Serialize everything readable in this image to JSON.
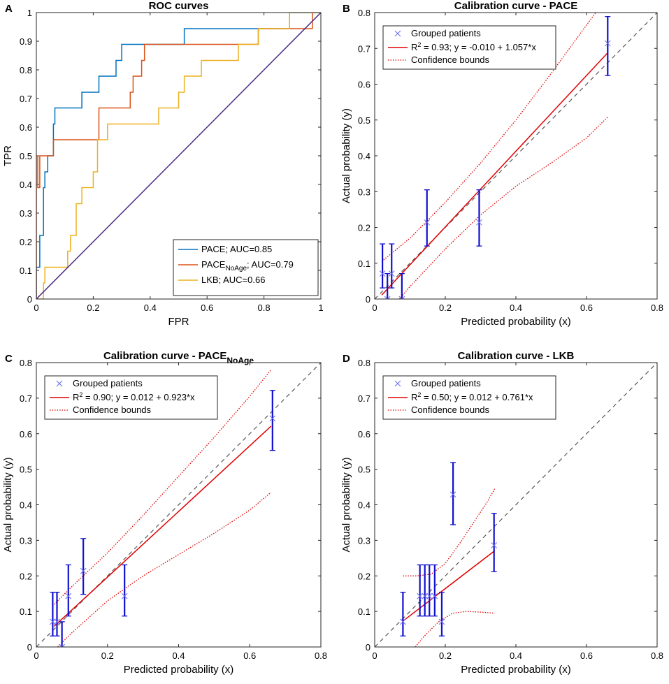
{
  "chart_data": [
    {
      "panel": "A",
      "type": "line",
      "title": "ROC curves",
      "xlabel": "FPR",
      "ylabel": "TPR",
      "xlim": [
        0,
        1
      ],
      "ylim": [
        0,
        1
      ],
      "xticks": [
        "0",
        "0.2",
        "0.4",
        "0.6",
        "0.8",
        "1"
      ],
      "yticks": [
        "0",
        "0.1",
        "0.2",
        "0.3",
        "0.4",
        "0.5",
        "0.6",
        "0.7",
        "0.8",
        "0.9",
        "1"
      ],
      "legend_position": "bottom-right",
      "series": [
        {
          "name": "PACE; AUC=0.85",
          "label_main": "PACE",
          "label_sub": "",
          "label_rest": "; AUC=0.85",
          "color": "#0072BD",
          "points": [
            [
              0,
              0
            ],
            [
              0,
              0.111
            ],
            [
              0.012,
              0.111
            ],
            [
              0.012,
              0.222
            ],
            [
              0.025,
              0.222
            ],
            [
              0.025,
              0.389
            ],
            [
              0.03,
              0.389
            ],
            [
              0.03,
              0.444
            ],
            [
              0.04,
              0.444
            ],
            [
              0.04,
              0.5
            ],
            [
              0.06,
              0.5
            ],
            [
              0.06,
              0.611
            ],
            [
              0.065,
              0.611
            ],
            [
              0.065,
              0.667
            ],
            [
              0.16,
              0.667
            ],
            [
              0.16,
              0.722
            ],
            [
              0.22,
              0.722
            ],
            [
              0.22,
              0.778
            ],
            [
              0.28,
              0.778
            ],
            [
              0.28,
              0.833
            ],
            [
              0.3,
              0.833
            ],
            [
              0.3,
              0.889
            ],
            [
              0.52,
              0.889
            ],
            [
              0.52,
              0.944
            ],
            [
              0.89,
              0.944
            ],
            [
              0.89,
              1
            ],
            [
              1,
              1
            ]
          ]
        },
        {
          "name": "PACE_NoAge; AUC=0.79",
          "label_main": "PACE",
          "label_sub": "NoAge",
          "label_rest": "; AUC=0.79",
          "color": "#D95319",
          "points": [
            [
              0,
              0
            ],
            [
              0,
              0.5
            ],
            [
              0.005,
              0.5
            ],
            [
              0.005,
              0.389
            ],
            [
              0.012,
              0.389
            ],
            [
              0.012,
              0.5
            ],
            [
              0.06,
              0.5
            ],
            [
              0.06,
              0.556
            ],
            [
              0.22,
              0.556
            ],
            [
              0.22,
              0.667
            ],
            [
              0.33,
              0.667
            ],
            [
              0.33,
              0.722
            ],
            [
              0.34,
              0.722
            ],
            [
              0.34,
              0.778
            ],
            [
              0.37,
              0.778
            ],
            [
              0.37,
              0.833
            ],
            [
              0.38,
              0.833
            ],
            [
              0.38,
              0.889
            ],
            [
              0.78,
              0.889
            ],
            [
              0.78,
              0.944
            ],
            [
              0.97,
              0.944
            ],
            [
              0.97,
              1
            ],
            [
              1,
              1
            ]
          ]
        },
        {
          "name": "LKB; AUC=0.66",
          "label_main": "LKB",
          "label_sub": "",
          "label_rest": "; AUC=0.66",
          "color": "#EDB120",
          "points": [
            [
              0,
              0
            ],
            [
              0.025,
              0
            ],
            [
              0.025,
              0.056
            ],
            [
              0.03,
              0.056
            ],
            [
              0.03,
              0.111
            ],
            [
              0.11,
              0.111
            ],
            [
              0.11,
              0.167
            ],
            [
              0.12,
              0.167
            ],
            [
              0.12,
              0.222
            ],
            [
              0.14,
              0.222
            ],
            [
              0.14,
              0.333
            ],
            [
              0.16,
              0.333
            ],
            [
              0.16,
              0.389
            ],
            [
              0.2,
              0.389
            ],
            [
              0.2,
              0.444
            ],
            [
              0.215,
              0.444
            ],
            [
              0.215,
              0.556
            ],
            [
              0.25,
              0.556
            ],
            [
              0.25,
              0.611
            ],
            [
              0.43,
              0.611
            ],
            [
              0.43,
              0.667
            ],
            [
              0.5,
              0.667
            ],
            [
              0.5,
              0.722
            ],
            [
              0.52,
              0.722
            ],
            [
              0.52,
              0.778
            ],
            [
              0.58,
              0.778
            ],
            [
              0.58,
              0.833
            ],
            [
              0.71,
              0.833
            ],
            [
              0.71,
              0.889
            ],
            [
              0.78,
              0.889
            ],
            [
              0.78,
              0.944
            ],
            [
              0.89,
              0.944
            ],
            [
              0.89,
              1
            ],
            [
              1,
              1
            ]
          ]
        },
        {
          "name": "diagonal",
          "color": "#4B2C82",
          "points": [
            [
              0,
              0
            ],
            [
              1,
              1
            ]
          ]
        }
      ]
    },
    {
      "panel": "B",
      "type": "scatter",
      "title_main": "Calibration curve - PACE",
      "title_sub": "",
      "xlabel": "Predicted probability (x)",
      "ylabel": "Actual probability (y)",
      "xlim": [
        0,
        0.8
      ],
      "ylim": [
        0,
        0.8
      ],
      "xticks": [
        "0",
        "0.2",
        "0.4",
        "0.6",
        "0.8"
      ],
      "yticks": [
        "0",
        "0.1",
        "0.2",
        "0.3",
        "0.4",
        "0.5",
        "0.6",
        "0.7",
        "0.8"
      ],
      "legend": {
        "grouped": "Grouped patients",
        "fit_pre": "R",
        "fit_sup": "2",
        "fit_post": " = 0.93; y = -0.010 + 1.057*x",
        "bounds": "Confidence bounds"
      },
      "fit": {
        "intercept": -0.01,
        "slope": 1.057,
        "x_range": [
          0.02,
          0.66
        ]
      },
      "points": [
        {
          "x": 0.022,
          "y": 0.071,
          "lo": 0.031,
          "hi": 0.154
        },
        {
          "x": 0.036,
          "y": 0.0,
          "lo": 0.0,
          "hi": 0.071
        },
        {
          "x": 0.048,
          "y": 0.071,
          "lo": 0.031,
          "hi": 0.154
        },
        {
          "x": 0.077,
          "y": 0.0,
          "lo": 0.0,
          "hi": 0.071
        },
        {
          "x": 0.148,
          "y": 0.214,
          "lo": 0.148,
          "hi": 0.305
        },
        {
          "x": 0.296,
          "y": 0.214,
          "lo": 0.148,
          "hi": 0.305
        },
        {
          "x": 0.66,
          "y": 0.714,
          "lo": 0.624,
          "hi": 0.789
        }
      ],
      "upper_bound": [
        [
          0.02,
          0.105
        ],
        [
          0.1,
          0.17
        ],
        [
          0.2,
          0.27
        ],
        [
          0.3,
          0.38
        ],
        [
          0.4,
          0.5
        ],
        [
          0.5,
          0.63
        ],
        [
          0.6,
          0.765
        ],
        [
          0.63,
          0.805
        ]
      ],
      "lower_bound": [
        [
          0.07,
          0.0
        ],
        [
          0.1,
          0.035
        ],
        [
          0.2,
          0.14
        ],
        [
          0.3,
          0.235
        ],
        [
          0.4,
          0.315
        ],
        [
          0.5,
          0.38
        ],
        [
          0.6,
          0.45
        ],
        [
          0.66,
          0.508
        ]
      ]
    },
    {
      "panel": "C",
      "type": "scatter",
      "title_main": "Calibration curve - PACE",
      "title_sub": "NoAge",
      "xlabel": "Predicted probability (x)",
      "ylabel": "Actual probability (y)",
      "xlim": [
        0,
        0.8
      ],
      "ylim": [
        0,
        0.8
      ],
      "xticks": [
        "0",
        "0.2",
        "0.4",
        "0.6",
        "0.8"
      ],
      "yticks": [
        "0",
        "0.1",
        "0.2",
        "0.3",
        "0.4",
        "0.5",
        "0.6",
        "0.7",
        "0.8"
      ],
      "legend": {
        "grouped": "Grouped patients",
        "fit_pre": "R",
        "fit_sup": "2",
        "fit_post": " = 0.90; y = 0.012 + 0.923*x",
        "bounds": "Confidence bounds"
      },
      "fit": {
        "intercept": 0.012,
        "slope": 0.923,
        "x_range": [
          0.05,
          0.66
        ]
      },
      "points": [
        {
          "x": 0.046,
          "y": 0.071,
          "lo": 0.031,
          "hi": 0.154
        },
        {
          "x": 0.058,
          "y": 0.071,
          "lo": 0.031,
          "hi": 0.154
        },
        {
          "x": 0.072,
          "y": 0.0,
          "lo": 0.0,
          "hi": 0.071
        },
        {
          "x": 0.09,
          "y": 0.143,
          "lo": 0.087,
          "hi": 0.231
        },
        {
          "x": 0.132,
          "y": 0.214,
          "lo": 0.148,
          "hi": 0.305
        },
        {
          "x": 0.248,
          "y": 0.143,
          "lo": 0.087,
          "hi": 0.231
        },
        {
          "x": 0.664,
          "y": 0.643,
          "lo": 0.553,
          "hi": 0.722
        }
      ],
      "upper_bound": [
        [
          0.05,
          0.12
        ],
        [
          0.1,
          0.17
        ],
        [
          0.2,
          0.265
        ],
        [
          0.3,
          0.37
        ],
        [
          0.4,
          0.48
        ],
        [
          0.5,
          0.59
        ],
        [
          0.6,
          0.705
        ],
        [
          0.66,
          0.78
        ]
      ],
      "lower_bound": [
        [
          0.06,
          0.0
        ],
        [
          0.1,
          0.04
        ],
        [
          0.2,
          0.13
        ],
        [
          0.3,
          0.2
        ],
        [
          0.4,
          0.26
        ],
        [
          0.5,
          0.32
        ],
        [
          0.6,
          0.385
        ],
        [
          0.66,
          0.435
        ]
      ]
    },
    {
      "panel": "D",
      "type": "scatter",
      "title_main": "Calibration curve - LKB",
      "title_sub": "",
      "xlabel": "Predicted probability (x)",
      "ylabel": "Actual probability (y)",
      "xlim": [
        0,
        0.8
      ],
      "ylim": [
        0,
        0.8
      ],
      "xticks": [
        "0",
        "0.2",
        "0.4",
        "0.6",
        "0.8"
      ],
      "yticks": [
        "0",
        "0.1",
        "0.2",
        "0.3",
        "0.4",
        "0.5",
        "0.6",
        "0.7",
        "0.8"
      ],
      "legend": {
        "grouped": "Grouped patients",
        "fit_pre": "R",
        "fit_sup": "2",
        "fit_post": " = 0.50; y = 0.012 + 0.761*x",
        "bounds": "Confidence bounds"
      },
      "fit": {
        "intercept": 0.012,
        "slope": 0.761,
        "x_range": [
          0.08,
          0.34
        ]
      },
      "points": [
        {
          "x": 0.08,
          "y": 0.071,
          "lo": 0.031,
          "hi": 0.154
        },
        {
          "x": 0.128,
          "y": 0.143,
          "lo": 0.087,
          "hi": 0.231
        },
        {
          "x": 0.142,
          "y": 0.143,
          "lo": 0.087,
          "hi": 0.231
        },
        {
          "x": 0.155,
          "y": 0.143,
          "lo": 0.087,
          "hi": 0.231
        },
        {
          "x": 0.17,
          "y": 0.143,
          "lo": 0.087,
          "hi": 0.231
        },
        {
          "x": 0.19,
          "y": 0.071,
          "lo": 0.031,
          "hi": 0.154
        },
        {
          "x": 0.222,
          "y": 0.429,
          "lo": 0.344,
          "hi": 0.519
        },
        {
          "x": 0.338,
          "y": 0.286,
          "lo": 0.212,
          "hi": 0.376
        }
      ],
      "upper_bound": [
        [
          0.08,
          0.2
        ],
        [
          0.12,
          0.2
        ],
        [
          0.16,
          0.205
        ],
        [
          0.2,
          0.235
        ],
        [
          0.24,
          0.29
        ],
        [
          0.28,
          0.35
        ],
        [
          0.32,
          0.41
        ],
        [
          0.34,
          0.445
        ]
      ],
      "lower_bound": [
        [
          0.115,
          0.0
        ],
        [
          0.14,
          0.03
        ],
        [
          0.18,
          0.07
        ],
        [
          0.22,
          0.095
        ],
        [
          0.26,
          0.1
        ],
        [
          0.3,
          0.098
        ],
        [
          0.34,
          0.095
        ]
      ]
    }
  ]
}
